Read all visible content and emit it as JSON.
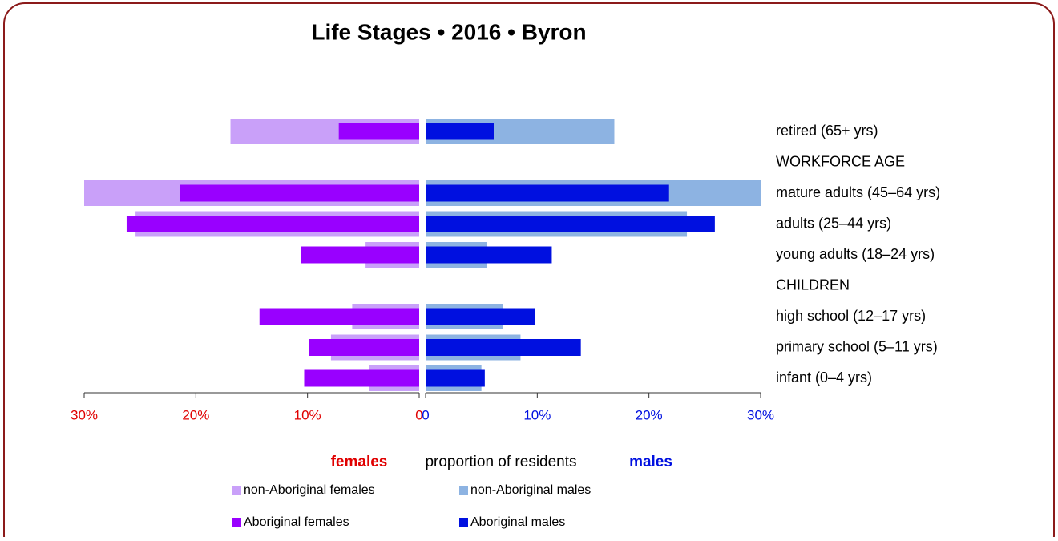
{
  "chart_data": {
    "type": "pyramid",
    "title": "Life Stages  •  2016  •  Byron",
    "categories": [
      "retired (65+ yrs)",
      "WORKFORCE AGE",
      "mature adults (45–64 yrs)",
      "adults (25–44 yrs)",
      "young adults (18–24 yrs)",
      "CHILDREN",
      "high school (12–17 yrs)",
      "primary school (5–11 yrs)",
      "infant (0–4 yrs)"
    ],
    "series": [
      {
        "name": "non-Aboriginal females",
        "color": "#c9a0f9",
        "side": "left",
        "values": [
          16.9,
          null,
          30.0,
          25.4,
          4.8,
          null,
          6.0,
          7.9,
          4.5
        ]
      },
      {
        "name": "non-Aboriginal males",
        "color": "#8db3e2",
        "side": "right",
        "values": [
          16.9,
          null,
          30.0,
          23.4,
          5.5,
          null,
          6.9,
          8.5,
          5.0
        ]
      },
      {
        "name": "Aboriginal females",
        "color": "#9900ff",
        "side": "left",
        "values": [
          7.2,
          null,
          21.4,
          26.2,
          10.6,
          null,
          14.3,
          9.9,
          10.3
        ]
      },
      {
        "name": "Aboriginal males",
        "color": "#0010e0",
        "side": "right",
        "values": [
          6.1,
          null,
          21.8,
          25.9,
          11.3,
          null,
          9.8,
          13.9,
          5.3
        ]
      }
    ],
    "xlim": [
      0,
      30
    ],
    "xticks_left": [
      {
        "value": 30,
        "label": "30%"
      },
      {
        "value": 20,
        "label": "20%"
      },
      {
        "value": 10,
        "label": "10%"
      },
      0
    ],
    "xticks_right": [
      0,
      {
        "value": 10,
        "label": "10%"
      },
      {
        "value": 20,
        "label": "20%"
      },
      {
        "value": 30,
        "label": "30%"
      }
    ],
    "left_label": "females",
    "xlabel": "proportion of residents",
    "right_label": "males"
  }
}
